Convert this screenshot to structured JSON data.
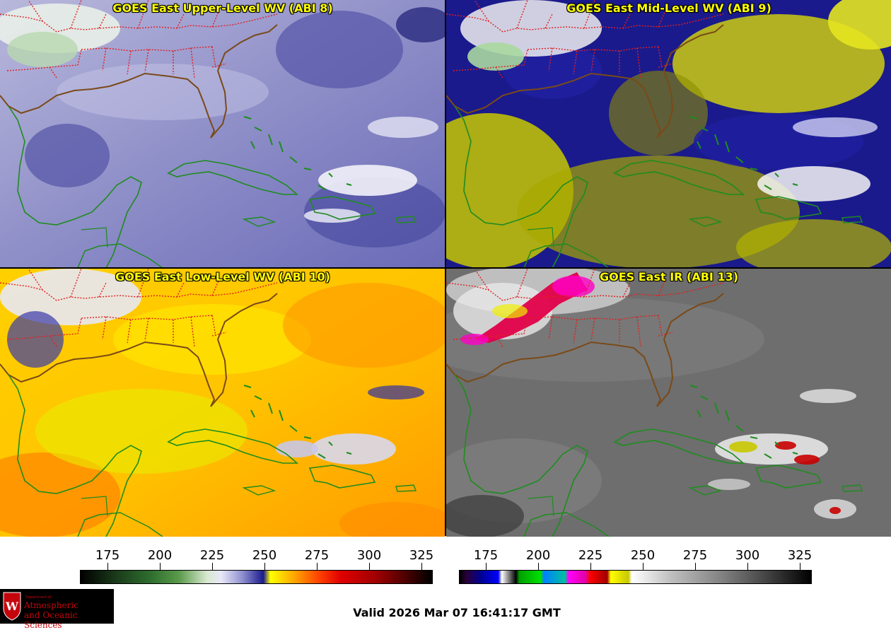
{
  "panels": [
    {
      "id": "abi8",
      "title": "GOES East Upper-Level WV (ABI 8)"
    },
    {
      "id": "abi9",
      "title": "GOES East Mid-Level WV (ABI 9)"
    },
    {
      "id": "abi10",
      "title": "GOES East Low-Level WV (ABI 10)"
    },
    {
      "id": "abi13",
      "title": "GOES East IR (ABI 13)"
    }
  ],
  "colorbars": {
    "wv": {
      "ticks": [
        "175",
        "200",
        "225",
        "250",
        "275",
        "300",
        "325"
      ]
    },
    "ir": {
      "ticks": [
        "175",
        "200",
        "225",
        "250",
        "275",
        "300",
        "325"
      ]
    }
  },
  "logo": {
    "department_line": "Department of",
    "line1": "Atmospheric",
    "line2": "and Oceanic Sciences",
    "seal_letter": "W"
  },
  "valid_time": "Valid 2026 Mar 07 16:41:17 GMT",
  "colors": {
    "title_text": "#ffff00",
    "coastline": "#1e8c1e",
    "state_borders": "#e02020"
  }
}
